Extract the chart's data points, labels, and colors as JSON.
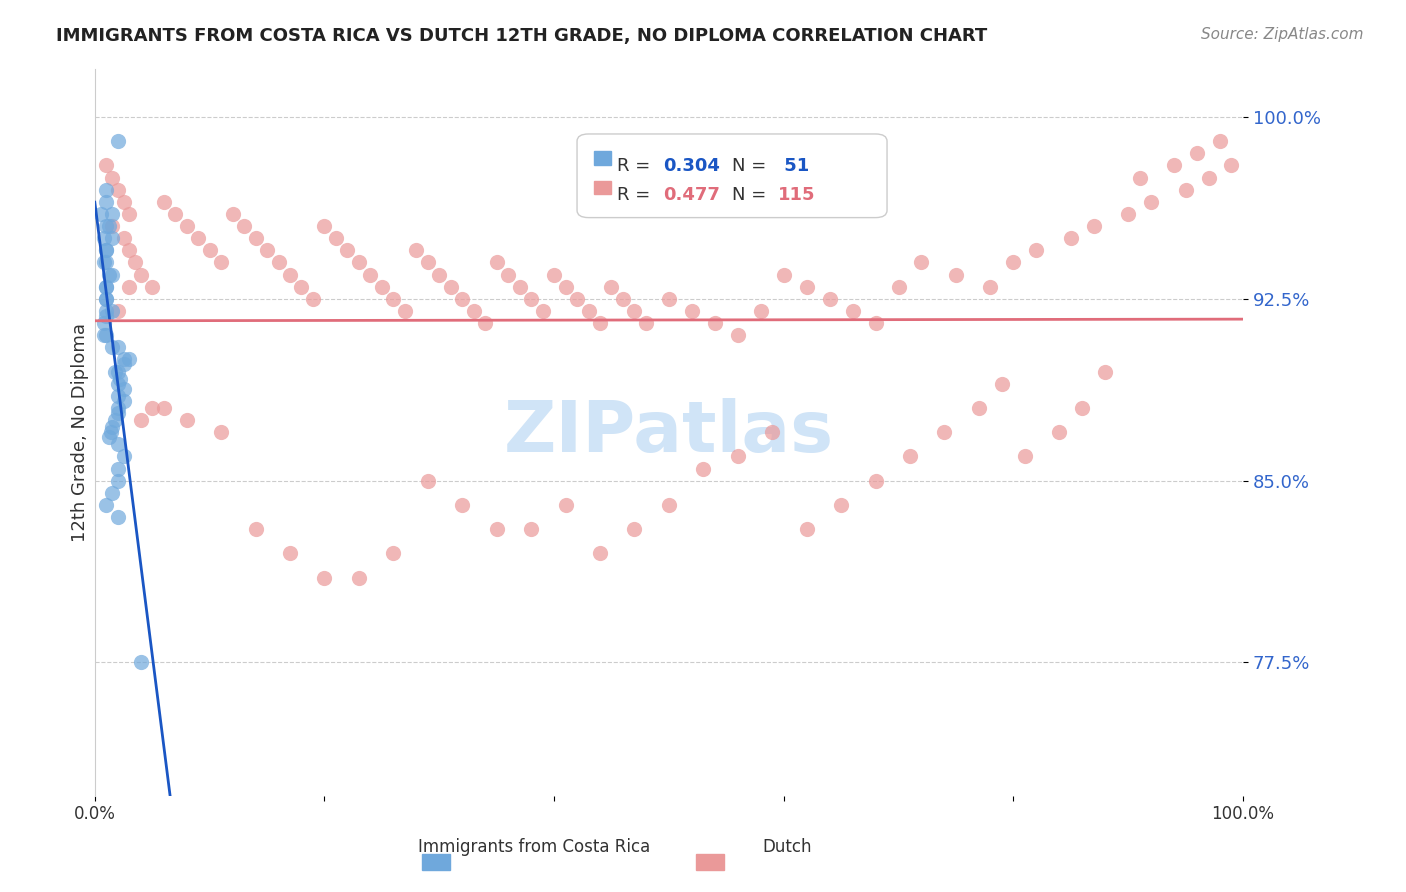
{
  "title": "IMMIGRANTS FROM COSTA RICA VS DUTCH 12TH GRADE, NO DIPLOMA CORRELATION CHART",
  "source": "Source: ZipAtlas.com",
  "xlabel": "",
  "ylabel": "12th Grade, No Diploma",
  "xlim": [
    0.0,
    1.0
  ],
  "ylim": [
    0.72,
    1.02
  ],
  "yticks": [
    0.775,
    0.85,
    0.925,
    1.0
  ],
  "ytick_labels": [
    "77.5%",
    "85.0%",
    "92.5%",
    "100.0%"
  ],
  "xticks": [
    0.0,
    0.2,
    0.4,
    0.6,
    0.8,
    1.0
  ],
  "xtick_labels": [
    "0.0%",
    "",
    "",
    "",
    "",
    "100.0%"
  ],
  "legend_blue_r": "R = 0.304",
  "legend_blue_n": "N =  51",
  "legend_pink_r": "R = 0.477",
  "legend_pink_n": "N = 115",
  "blue_color": "#6fa8dc",
  "pink_color": "#ea9999",
  "blue_line_color": "#1a56c4",
  "pink_line_color": "#e06c7a",
  "right_label_color": "#3366cc",
  "title_color": "#222222",
  "watermark_text": "ZIPatlas",
  "watermark_color": "#d0e4f7",
  "blue_scatter_x": [
    0.02,
    0.01,
    0.015,
    0.01,
    0.005,
    0.01,
    0.012,
    0.008,
    0.015,
    0.01,
    0.01,
    0.01,
    0.008,
    0.015,
    0.012,
    0.01,
    0.01,
    0.01,
    0.01,
    0.01,
    0.015,
    0.01,
    0.008,
    0.008,
    0.01,
    0.015,
    0.02,
    0.025,
    0.03,
    0.025,
    0.02,
    0.018,
    0.022,
    0.02,
    0.025,
    0.02,
    0.025,
    0.02,
    0.02,
    0.018,
    0.015,
    0.014,
    0.012,
    0.02,
    0.025,
    0.02,
    0.02,
    0.015,
    0.01,
    0.02,
    0.04
  ],
  "blue_scatter_y": [
    0.99,
    0.97,
    0.96,
    0.965,
    0.96,
    0.955,
    0.955,
    0.95,
    0.95,
    0.945,
    0.945,
    0.94,
    0.94,
    0.935,
    0.935,
    0.93,
    0.93,
    0.925,
    0.925,
    0.92,
    0.92,
    0.918,
    0.915,
    0.91,
    0.91,
    0.905,
    0.905,
    0.9,
    0.9,
    0.898,
    0.895,
    0.895,
    0.892,
    0.89,
    0.888,
    0.885,
    0.883,
    0.88,
    0.878,
    0.875,
    0.872,
    0.87,
    0.868,
    0.865,
    0.86,
    0.855,
    0.85,
    0.845,
    0.84,
    0.835,
    0.775
  ],
  "pink_scatter_x": [
    0.01,
    0.015,
    0.02,
    0.025,
    0.03,
    0.015,
    0.025,
    0.03,
    0.035,
    0.04,
    0.05,
    0.06,
    0.07,
    0.08,
    0.09,
    0.1,
    0.11,
    0.12,
    0.13,
    0.14,
    0.15,
    0.16,
    0.17,
    0.18,
    0.19,
    0.2,
    0.21,
    0.22,
    0.23,
    0.24,
    0.25,
    0.26,
    0.27,
    0.28,
    0.29,
    0.3,
    0.31,
    0.32,
    0.33,
    0.34,
    0.35,
    0.36,
    0.37,
    0.38,
    0.39,
    0.4,
    0.41,
    0.42,
    0.43,
    0.44,
    0.45,
    0.46,
    0.47,
    0.48,
    0.5,
    0.52,
    0.54,
    0.56,
    0.58,
    0.6,
    0.62,
    0.64,
    0.66,
    0.68,
    0.7,
    0.72,
    0.75,
    0.78,
    0.8,
    0.82,
    0.85,
    0.87,
    0.9,
    0.92,
    0.95,
    0.97,
    0.99,
    0.98,
    0.96,
    0.94,
    0.91,
    0.88,
    0.86,
    0.84,
    0.81,
    0.79,
    0.77,
    0.74,
    0.71,
    0.68,
    0.65,
    0.62,
    0.59,
    0.56,
    0.53,
    0.5,
    0.47,
    0.44,
    0.41,
    0.38,
    0.35,
    0.32,
    0.29,
    0.26,
    0.23,
    0.2,
    0.17,
    0.14,
    0.11,
    0.08,
    0.05,
    0.02,
    0.03,
    0.04,
    0.06
  ],
  "pink_scatter_y": [
    0.98,
    0.975,
    0.97,
    0.965,
    0.96,
    0.955,
    0.95,
    0.945,
    0.94,
    0.935,
    0.93,
    0.965,
    0.96,
    0.955,
    0.95,
    0.945,
    0.94,
    0.96,
    0.955,
    0.95,
    0.945,
    0.94,
    0.935,
    0.93,
    0.925,
    0.955,
    0.95,
    0.945,
    0.94,
    0.935,
    0.93,
    0.925,
    0.92,
    0.945,
    0.94,
    0.935,
    0.93,
    0.925,
    0.92,
    0.915,
    0.94,
    0.935,
    0.93,
    0.925,
    0.92,
    0.935,
    0.93,
    0.925,
    0.92,
    0.915,
    0.93,
    0.925,
    0.92,
    0.915,
    0.925,
    0.92,
    0.915,
    0.91,
    0.92,
    0.935,
    0.93,
    0.925,
    0.92,
    0.915,
    0.93,
    0.94,
    0.935,
    0.93,
    0.94,
    0.945,
    0.95,
    0.955,
    0.96,
    0.965,
    0.97,
    0.975,
    0.98,
    0.99,
    0.985,
    0.98,
    0.975,
    0.895,
    0.88,
    0.87,
    0.86,
    0.89,
    0.88,
    0.87,
    0.86,
    0.85,
    0.84,
    0.83,
    0.87,
    0.86,
    0.855,
    0.84,
    0.83,
    0.82,
    0.84,
    0.83,
    0.83,
    0.84,
    0.85,
    0.82,
    0.81,
    0.81,
    0.82,
    0.83,
    0.87,
    0.875,
    0.88,
    0.92,
    0.93,
    0.875,
    0.88
  ]
}
